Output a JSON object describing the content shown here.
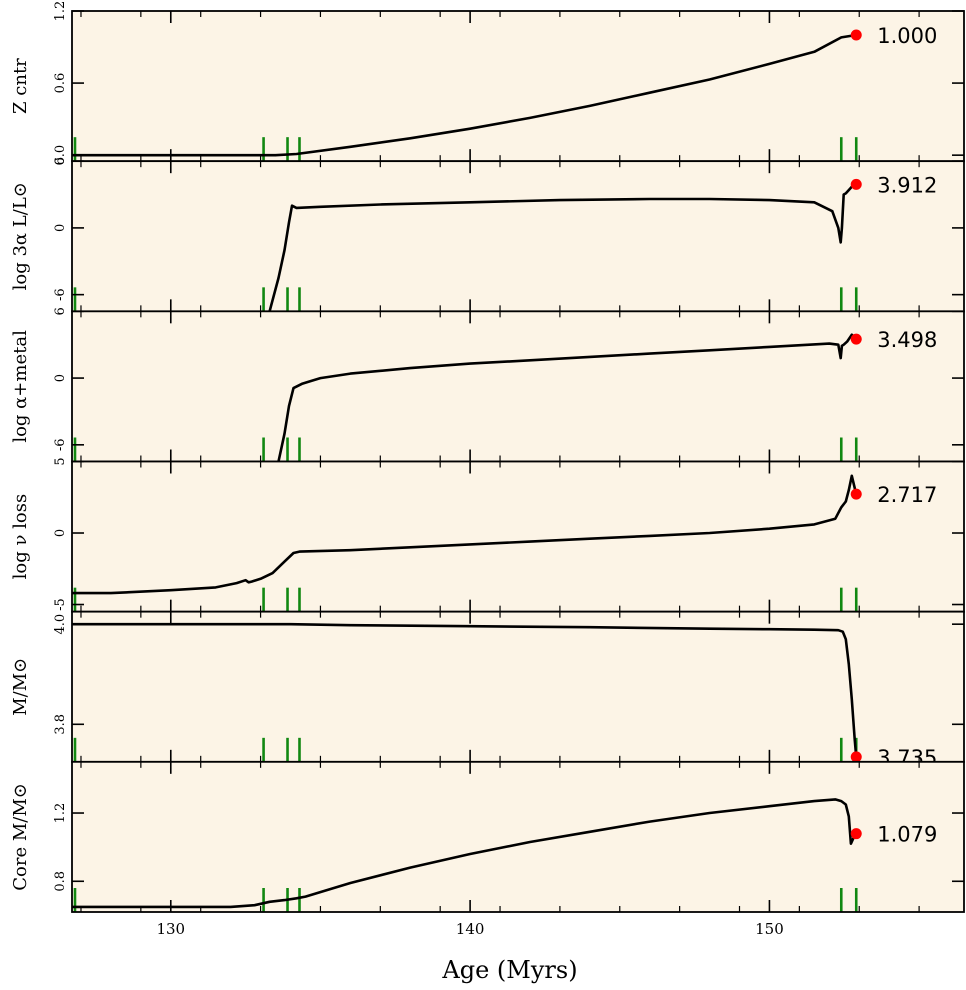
{
  "chart_data": {
    "type": "line",
    "xlabel": "Age (Myrs)",
    "xlim": [
      126.7,
      156.5
    ],
    "xticks": [
      130,
      140,
      150
    ],
    "background_color": "#fcf4e6",
    "line_color": "#000000",
    "marker_color": "#ff0000",
    "tick_mark_color": "#118811",
    "vertical_markers_x": [
      126.8,
      133.1,
      133.9,
      134.3,
      152.4,
      152.9
    ],
    "current_age": 152.9,
    "panels": [
      {
        "ylabel": "Z cntr",
        "ylim": [
          -0.05,
          1.2
        ],
        "yticks": [
          0.0,
          0.6,
          1.2
        ],
        "ytick_labels": [
          "0.0",
          "0.6",
          "1.2"
        ],
        "current_value": "1.000",
        "marker_y": 1.0,
        "series": [
          {
            "x": [
              126.7,
              130,
              132,
              133.5,
              134.2,
              136,
              138,
              140,
              142,
              144,
              146,
              148,
              150,
              151.5,
              152.4,
              152.9
            ],
            "y": [
              0.0,
              0.0,
              0.0,
              0.0,
              0.01,
              0.07,
              0.14,
              0.22,
              0.31,
              0.41,
              0.52,
              0.63,
              0.76,
              0.86,
              0.98,
              1.0
            ]
          }
        ]
      },
      {
        "ylabel": "log 3α L/L⊙",
        "ylim": [
          -7.5,
          6
        ],
        "yticks": [
          -6,
          0,
          6
        ],
        "ytick_labels": [
          "-6",
          "0",
          "6"
        ],
        "current_value": "3.912",
        "marker_y": 3.912,
        "series": [
          {
            "x": [
              133.3,
              133.6,
              133.8,
              133.95,
              134.05,
              134.2,
              135,
              137,
              140,
              143,
              146,
              148,
              150,
              151.5,
              152.1,
              152.3,
              152.38,
              152.42,
              152.48,
              152.55,
              152.75,
              152.9
            ],
            "y": [
              -7.5,
              -4.5,
              -2.0,
              0.5,
              2.0,
              1.8,
              1.9,
              2.1,
              2.3,
              2.5,
              2.6,
              2.6,
              2.5,
              2.3,
              1.5,
              0.0,
              -1.3,
              0.0,
              3.0,
              3.1,
              3.7,
              3.912
            ]
          }
        ]
      },
      {
        "ylabel": "log α+metal",
        "ylim": [
          -7.5,
          6
        ],
        "yticks": [
          -6,
          0,
          6
        ],
        "ytick_labels": [
          "-6",
          "0",
          "6"
        ],
        "current_value": "3.498",
        "marker_y": 3.498,
        "series": [
          {
            "x": [
              133.6,
              133.8,
              133.95,
              134.1,
              134.4,
              135,
              136,
              138,
              140,
              142,
              144,
              146,
              148,
              150,
              152.0,
              152.3,
              152.38,
              152.42,
              152.48,
              152.6,
              152.75,
              152.9
            ],
            "y": [
              -7.5,
              -5.0,
              -2.5,
              -0.9,
              -0.5,
              0.0,
              0.4,
              0.9,
              1.3,
              1.6,
              1.9,
              2.2,
              2.5,
              2.8,
              3.1,
              3.0,
              1.8,
              2.9,
              3.0,
              3.3,
              3.9,
              3.498
            ]
          }
        ]
      },
      {
        "ylabel": "log ν loss",
        "ylim": [
          -5.5,
          5
        ],
        "yticks": [
          -5,
          0,
          5
        ],
        "ytick_labels": [
          "-5",
          "0",
          "5"
        ],
        "current_value": "2.717",
        "marker_y": 2.717,
        "series": [
          {
            "x": [
              126.7,
              128,
              130,
              131.5,
              132.2,
              132.5,
              132.6,
              132.7,
              133.0,
              133.4,
              133.8,
              134.1,
              134.3,
              136,
              138,
              140,
              142,
              144,
              146,
              148,
              150,
              151.5,
              152.2,
              152.4,
              152.55,
              152.65,
              152.75,
              152.9
            ],
            "y": [
              -4.2,
              -4.2,
              -4.0,
              -3.8,
              -3.5,
              -3.3,
              -3.45,
              -3.4,
              -3.2,
              -2.8,
              -2.0,
              -1.4,
              -1.3,
              -1.2,
              -1.0,
              -0.8,
              -0.6,
              -0.4,
              -0.2,
              0.0,
              0.3,
              0.6,
              1.0,
              1.8,
              2.2,
              3.0,
              4.0,
              2.717
            ]
          }
        ]
      },
      {
        "ylabel": "M/M⊙",
        "ylim": [
          3.725,
          4.025
        ],
        "yticks": [
          3.8,
          4.0
        ],
        "ytick_labels": [
          "3.8",
          "4.0"
        ],
        "current_value": "3.735",
        "marker_y": 3.735,
        "series": [
          {
            "x": [
              126.7,
              130,
              134,
              136,
              140,
              144,
              148,
              150,
              151.5,
              152.3,
              152.45,
              152.55,
              152.65,
              152.75,
              152.85,
              152.9
            ],
            "y": [
              4.0,
              4.0,
              4.0,
              3.998,
              3.996,
              3.994,
              3.991,
              3.99,
              3.989,
              3.988,
              3.985,
              3.97,
              3.92,
              3.85,
              3.77,
              3.735
            ]
          }
        ]
      },
      {
        "ylabel": "Core M/M⊙",
        "ylim": [
          0.62,
          1.5
        ],
        "yticks": [
          0.8,
          1.2
        ],
        "ytick_labels": [
          "0.8",
          "1.2"
        ],
        "current_value": "1.079",
        "marker_y": 1.079,
        "series": [
          {
            "x": [
              126.7,
              130,
              132,
              132.8,
              133.3,
              133.8,
              134.2,
              134.5,
              136,
              138,
              140,
              142,
              144,
              146,
              148,
              150,
              151.5,
              152.2,
              152.4,
              152.55,
              152.65,
              152.72,
              152.8,
              152.9
            ],
            "y": [
              0.65,
              0.65,
              0.65,
              0.66,
              0.68,
              0.69,
              0.7,
              0.71,
              0.79,
              0.88,
              0.96,
              1.03,
              1.09,
              1.15,
              1.2,
              1.24,
              1.27,
              1.28,
              1.27,
              1.25,
              1.18,
              1.02,
              1.05,
              1.079
            ]
          }
        ]
      }
    ]
  }
}
